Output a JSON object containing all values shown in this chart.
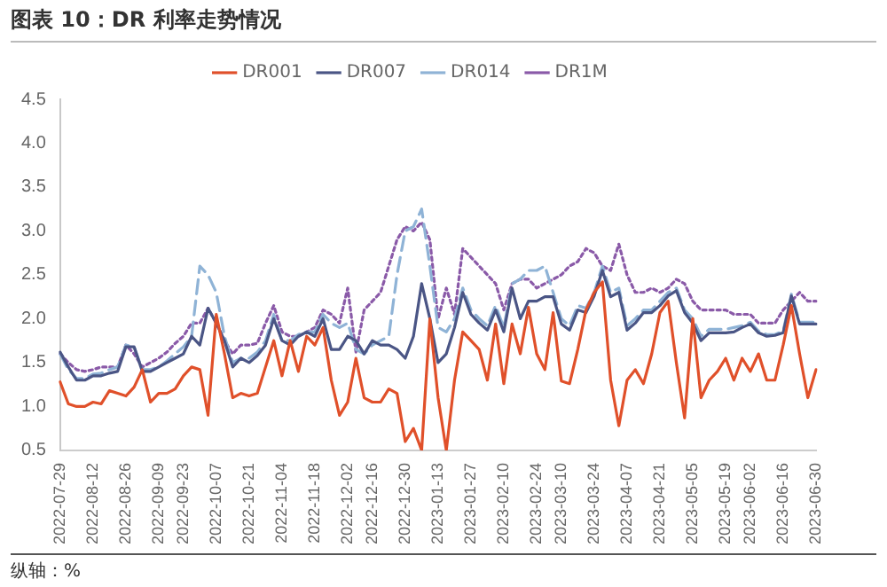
{
  "chart_data": {
    "type": "line",
    "title": "图表 10：DR 利率走势情况",
    "annotations": [
      "纵轴：%"
    ],
    "categories": [
      "2022-07-29",
      null,
      null,
      null,
      "2022-08-12",
      null,
      null,
      null,
      "2022-08-26",
      null,
      null,
      null,
      "2022-09-09",
      null,
      null,
      "2022-09-23",
      null,
      null,
      null,
      "2022-10-07",
      null,
      null,
      null,
      "2022-10-21",
      null,
      null,
      null,
      "2022-11-04",
      null,
      null,
      null,
      "2022-11-18",
      null,
      null,
      null,
      "2022-12-02",
      null,
      null,
      "2022-12-16",
      null,
      null,
      null,
      "2022-12-30",
      null,
      null,
      null,
      "2023-01-13",
      null,
      null,
      null,
      "2023-01-27",
      null,
      null,
      null,
      "2023-02-10",
      null,
      null,
      null,
      "2023-02-24",
      null,
      null,
      "2023-03-10",
      null,
      null,
      null,
      "2023-03-24",
      null,
      null,
      null,
      "2023-04-07",
      null,
      null,
      null,
      "2023-04-21",
      null,
      null,
      null,
      "2023-05-05",
      null,
      null,
      null,
      "2023-05-19",
      null,
      null,
      "2023-06-02",
      null,
      null,
      null,
      "2023-06-16",
      null,
      null,
      null,
      "2023-06-30"
    ],
    "ylim": [
      0.5,
      4.5
    ],
    "yticks": [
      0.5,
      {
        "value": 1,
        "label": "1.0"
      },
      1.5,
      {
        "value": 2,
        "label": "2.0"
      },
      2.5,
      {
        "value": 3,
        "label": "3.0"
      },
      3.5,
      {
        "value": 4,
        "label": "4.0"
      },
      4.5
    ],
    "grid": false,
    "legend": "top",
    "marker": "none",
    "series": [
      {
        "name": "DR001",
        "color": "#e0502a",
        "line_style": "solid",
        "values": [
          1.28,
          1.03,
          1.0,
          1.0,
          1.05,
          1.03,
          1.18,
          1.15,
          1.12,
          1.22,
          1.42,
          1.05,
          1.15,
          1.15,
          1.2,
          1.35,
          1.45,
          1.42,
          0.9,
          2.05,
          1.6,
          1.1,
          1.15,
          1.12,
          1.15,
          1.45,
          1.75,
          1.35,
          1.75,
          1.4,
          1.8,
          1.7,
          1.9,
          1.3,
          0.9,
          1.05,
          1.55,
          1.1,
          1.05,
          1.05,
          1.2,
          1.15,
          0.6,
          0.75,
          0.5,
          2.0,
          1.1,
          0.5,
          1.3,
          1.85,
          1.75,
          1.65,
          1.3,
          1.94,
          1.26,
          1.94,
          1.6,
          2.13,
          1.6,
          1.42,
          2.07,
          1.29,
          1.26,
          1.65,
          2.1,
          2.3,
          2.42,
          1.3,
          0.78,
          1.3,
          1.42,
          1.26,
          1.6,
          2.07,
          2.2,
          1.5,
          0.87,
          2.0,
          1.1,
          1.3,
          1.4,
          1.55,
          1.3,
          1.55,
          1.4,
          1.6,
          1.3,
          1.3,
          1.7,
          2.15,
          1.6,
          1.1,
          1.42
        ]
      },
      {
        "name": "DR007",
        "color": "#4a5585",
        "line_style": "solid",
        "values": [
          1.62,
          1.45,
          1.3,
          1.3,
          1.35,
          1.35,
          1.38,
          1.4,
          1.68,
          1.68,
          1.4,
          1.4,
          1.45,
          1.5,
          1.55,
          1.6,
          1.8,
          1.7,
          2.12,
          1.95,
          1.75,
          1.45,
          1.55,
          1.5,
          1.58,
          1.7,
          2.0,
          1.75,
          1.7,
          1.8,
          1.85,
          1.8,
          2.0,
          1.65,
          1.65,
          1.8,
          1.75,
          1.6,
          1.75,
          1.7,
          1.7,
          1.65,
          1.55,
          1.8,
          2.4,
          2.0,
          1.5,
          1.6,
          1.9,
          2.3,
          2.05,
          1.95,
          1.87,
          2.1,
          1.85,
          2.35,
          2.0,
          2.2,
          2.2,
          2.25,
          2.25,
          1.94,
          1.87,
          2.1,
          2.07,
          2.26,
          2.55,
          2.25,
          2.3,
          1.87,
          1.95,
          2.07,
          2.07,
          2.15,
          2.26,
          2.32,
          2.07,
          1.95,
          1.75,
          1.84,
          1.84,
          1.84,
          1.85,
          1.9,
          1.94,
          1.84,
          1.8,
          1.81,
          1.84,
          2.26,
          1.94,
          1.94,
          1.94
        ]
      },
      {
        "name": "DR014",
        "color": "#8fb3d6",
        "line_style": "dashed",
        "values": [
          1.6,
          1.42,
          1.32,
          1.32,
          1.37,
          1.38,
          1.42,
          1.45,
          1.7,
          1.68,
          1.42,
          1.42,
          1.45,
          1.52,
          1.6,
          1.68,
          1.8,
          2.6,
          2.5,
          2.3,
          1.8,
          1.5,
          1.55,
          1.55,
          1.62,
          1.75,
          2.05,
          1.75,
          1.75,
          1.82,
          1.85,
          1.85,
          2.05,
          1.95,
          1.9,
          1.95,
          1.65,
          1.6,
          1.7,
          1.75,
          1.8,
          2.5,
          3.0,
          3.05,
          3.25,
          2.6,
          1.9,
          1.85,
          2.0,
          2.35,
          2.1,
          2.0,
          1.92,
          2.15,
          1.9,
          2.4,
          2.45,
          2.55,
          2.55,
          2.6,
          2.3,
          2.0,
          1.92,
          2.15,
          2.12,
          2.3,
          2.6,
          2.3,
          2.35,
          1.92,
          2.0,
          2.1,
          2.1,
          2.2,
          2.3,
          2.35,
          2.1,
          2.0,
          1.8,
          1.88,
          1.88,
          1.88,
          1.9,
          1.92,
          1.96,
          1.86,
          1.82,
          1.82,
          1.86,
          2.28,
          1.96,
          1.96,
          1.96
        ]
      },
      {
        "name": "DR1M",
        "color": "#8a5aa8",
        "line_style": "dotted",
        "values": [
          1.6,
          1.5,
          1.42,
          1.4,
          1.42,
          1.45,
          1.45,
          1.45,
          1.7,
          1.6,
          1.45,
          1.5,
          1.55,
          1.62,
          1.72,
          1.8,
          1.95,
          1.95,
          2.12,
          1.95,
          1.75,
          1.6,
          1.7,
          1.7,
          1.72,
          1.95,
          2.15,
          1.85,
          1.8,
          1.8,
          1.85,
          1.9,
          2.1,
          2.05,
          1.95,
          2.35,
          1.62,
          2.1,
          2.2,
          2.3,
          2.6,
          2.9,
          3.05,
          3.0,
          3.1,
          2.9,
          2.0,
          2.35,
          2.05,
          2.8,
          2.7,
          2.6,
          2.5,
          2.4,
          2.1,
          2.4,
          2.45,
          2.45,
          2.35,
          2.4,
          2.45,
          2.5,
          2.6,
          2.65,
          2.8,
          2.75,
          2.6,
          2.55,
          2.85,
          2.5,
          2.3,
          2.3,
          2.35,
          2.3,
          2.35,
          2.45,
          2.4,
          2.2,
          2.1,
          2.1,
          2.1,
          2.1,
          2.05,
          2.05,
          2.05,
          1.95,
          1.95,
          1.95,
          2.1,
          2.2,
          2.3,
          2.2,
          2.2
        ]
      }
    ]
  }
}
